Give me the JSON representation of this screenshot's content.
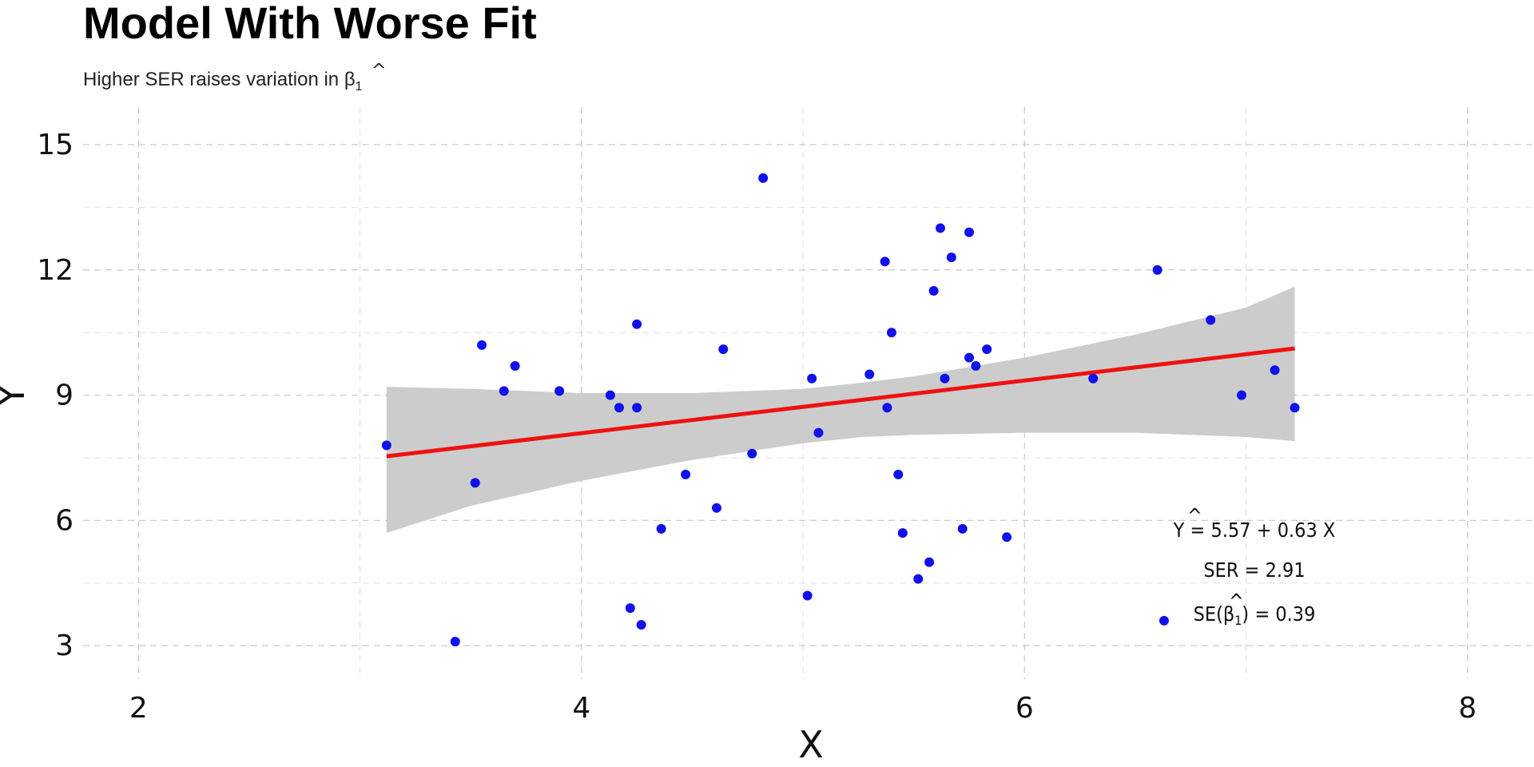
{
  "title": "Model With Worse Fit",
  "subtitle": {
    "prefix": "Higher SER raises variation in ",
    "symbol": "β",
    "hat": "^",
    "sub": "1"
  },
  "chart_data": {
    "type": "scatter",
    "xlabel": "X",
    "ylabel": "Y",
    "xlim": [
      1.75,
      8.3
    ],
    "ylim": [
      2.2,
      15.9
    ],
    "x_ticks": [
      2,
      4,
      6,
      8
    ],
    "y_ticks": [
      3,
      6,
      9,
      12,
      15
    ],
    "x_minor_ticks": [
      3,
      5,
      7
    ],
    "y_minor_ticks": [
      4.5,
      7.5,
      10.5,
      13.5
    ],
    "grid": true,
    "colors": {
      "points": "#1010ee",
      "fit_line": "#ee1111",
      "band": "#cccccc",
      "grid": "#cccccc"
    },
    "points": {
      "x": [
        3.12,
        3.43,
        3.52,
        3.55,
        3.65,
        3.7,
        3.9,
        4.13,
        4.17,
        4.22,
        4.25,
        4.25,
        4.27,
        4.36,
        4.47,
        4.61,
        4.64,
        4.77,
        4.82,
        5.02,
        5.04,
        5.07,
        5.3,
        5.37,
        5.38,
        5.4,
        5.43,
        5.45,
        5.52,
        5.57,
        5.59,
        5.62,
        5.64,
        5.67,
        5.72,
        5.75,
        5.75,
        5.78,
        5.83,
        5.92,
        6.31,
        6.6,
        6.63,
        6.84,
        6.98,
        7.13,
        7.22
      ],
      "y": [
        7.8,
        3.1,
        6.9,
        10.2,
        9.1,
        9.7,
        9.1,
        9.0,
        8.7,
        3.9,
        10.7,
        8.7,
        3.5,
        5.8,
        7.1,
        6.3,
        10.1,
        7.6,
        14.2,
        4.2,
        9.4,
        8.1,
        9.5,
        12.2,
        8.7,
        10.5,
        7.1,
        5.7,
        4.6,
        5.0,
        11.5,
        13.0,
        9.4,
        12.3,
        5.8,
        12.9,
        9.9,
        9.7,
        10.1,
        5.6,
        9.4,
        12.0,
        3.6,
        10.8,
        9.0,
        9.6,
        8.7
      ]
    },
    "fit_line": {
      "intercept": 5.57,
      "slope": 0.63,
      "x_range": [
        3.12,
        7.22
      ]
    },
    "confidence_band": {
      "x": [
        3.12,
        3.5,
        4.0,
        4.5,
        5.0,
        5.27,
        5.5,
        6.0,
        6.5,
        7.0,
        7.22
      ],
      "lower": [
        5.7,
        6.35,
        6.95,
        7.45,
        7.85,
        8.0,
        8.05,
        8.1,
        8.1,
        8.0,
        7.9
      ],
      "upper": [
        9.2,
        9.15,
        9.05,
        9.05,
        9.15,
        9.3,
        9.45,
        9.9,
        10.45,
        11.1,
        11.6
      ]
    },
    "annotations": {
      "equation": {
        "lhs": "Y",
        "hat": "^",
        "rhs": " = 5.57 + 0.63 X"
      },
      "ser": "SER = 2.91",
      "se": {
        "prefix": "SE(",
        "symbol": "β",
        "hat": "^",
        "sub": "1",
        "suffix": ") = 0.39"
      }
    }
  }
}
